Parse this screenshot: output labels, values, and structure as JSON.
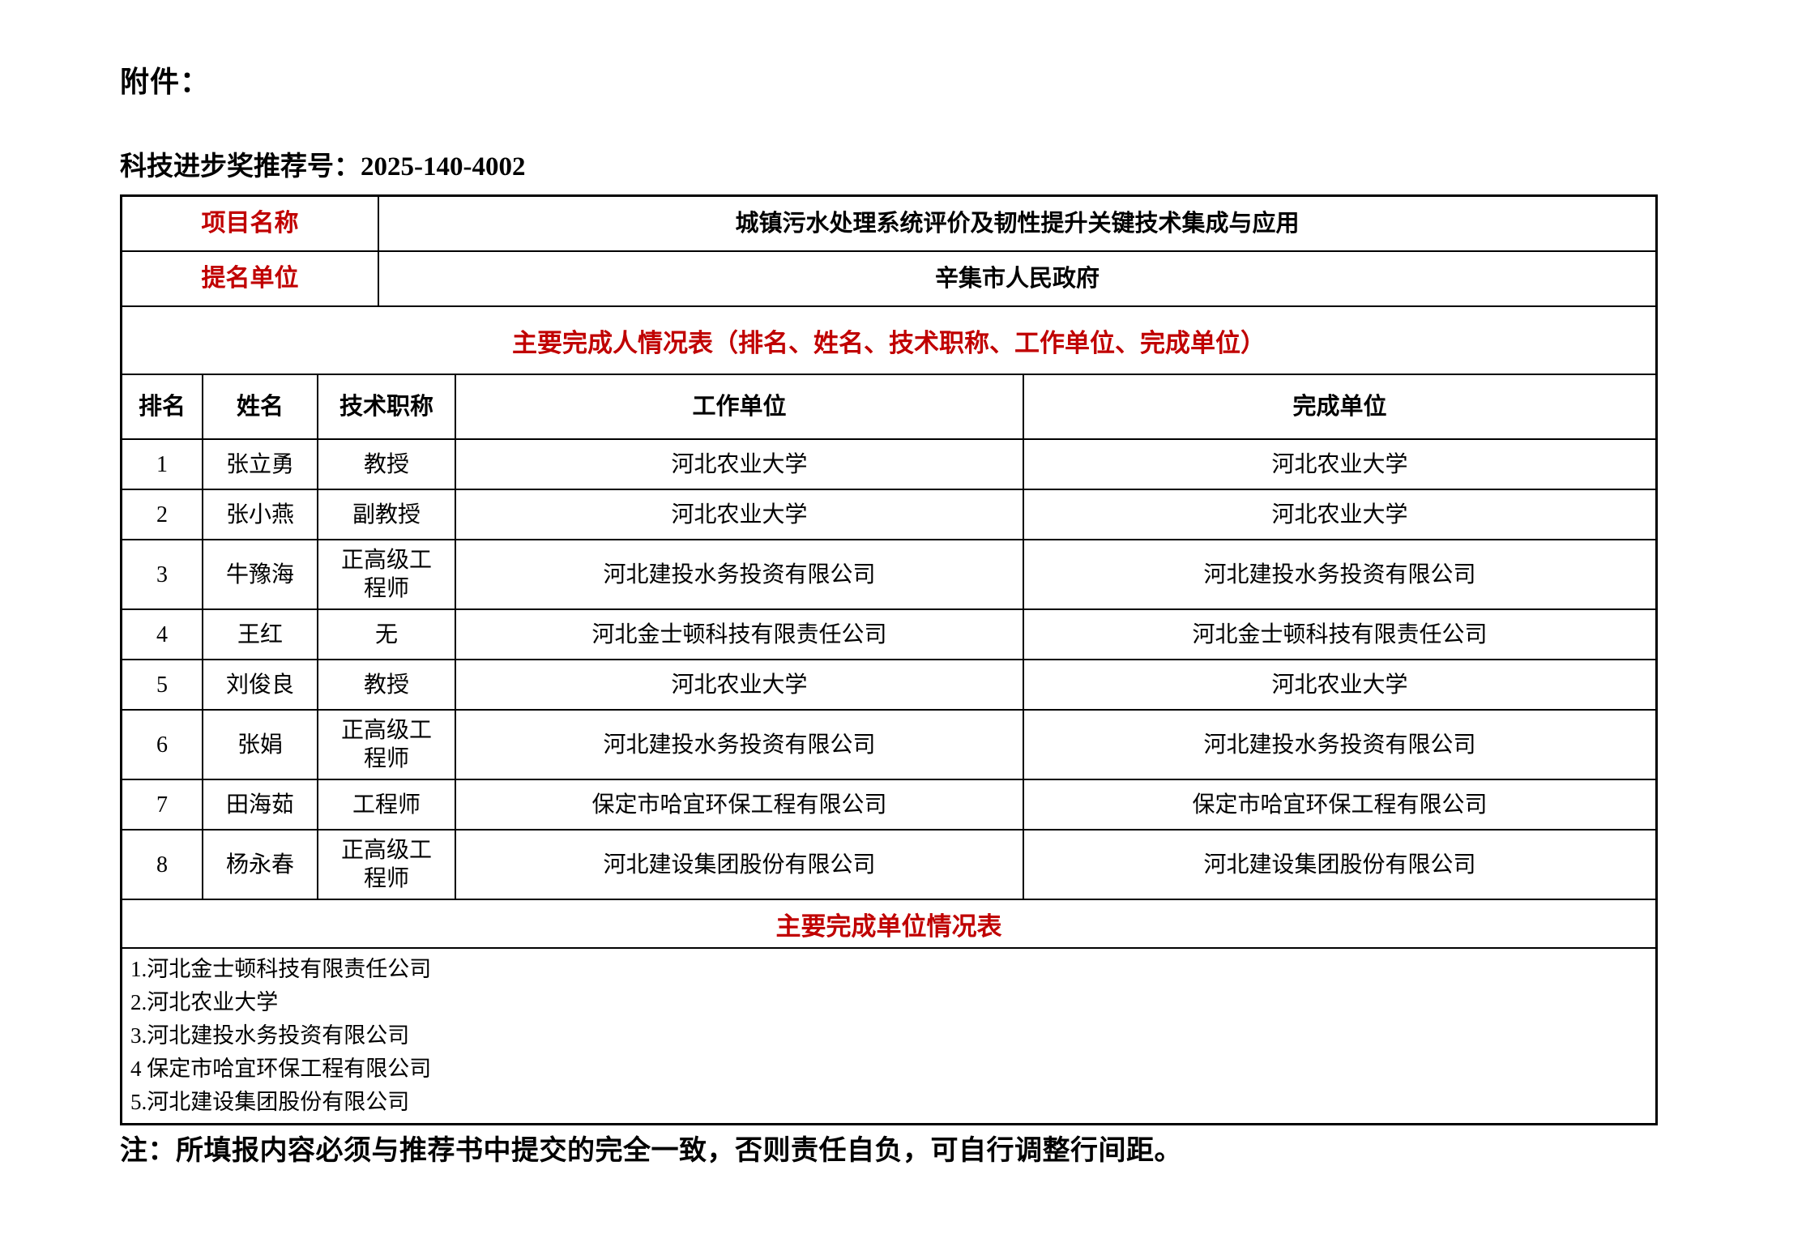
{
  "page": {
    "attachment_label": "附件：",
    "recommendation_label": "科技进步奖推荐号：",
    "recommendation_number": "2025-140-4002",
    "note": "注：所填报内容必须与推荐书中提交的完全一致，否则责任自负，可自行调整行间距。"
  },
  "info_table": {
    "rows": [
      {
        "label": "项目名称",
        "value": "城镇污水处理系统评价及韧性提升关键技术集成与应用"
      },
      {
        "label": "提名单位",
        "value": "辛集市人民政府"
      }
    ]
  },
  "contributors": {
    "section_title": "主要完成人情况表（排名、姓名、技术职称、工作单位、完成单位）",
    "headers": [
      "排名",
      "姓名",
      "技术职称",
      "工作单位",
      "完成单位"
    ],
    "rows": [
      {
        "rank": "1",
        "name": "张立勇",
        "title": "教授",
        "work_unit": "河北农业大学",
        "completion_unit": "河北农业大学"
      },
      {
        "rank": "2",
        "name": "张小燕",
        "title": "副教授",
        "work_unit": "河北农业大学",
        "completion_unit": "河北农业大学"
      },
      {
        "rank": "3",
        "name": "牛豫海",
        "title": "正高级工程师",
        "work_unit": "河北建投水务投资有限公司",
        "completion_unit": "河北建投水务投资有限公司"
      },
      {
        "rank": "4",
        "name": "王红",
        "title": "无",
        "work_unit": "河北金士顿科技有限责任公司",
        "completion_unit": "河北金士顿科技有限责任公司"
      },
      {
        "rank": "5",
        "name": "刘俊良",
        "title": "教授",
        "work_unit": "河北农业大学",
        "completion_unit": "河北农业大学"
      },
      {
        "rank": "6",
        "name": "张娟",
        "title": "正高级工程师",
        "work_unit": "河北建投水务投资有限公司",
        "completion_unit": "河北建投水务投资有限公司"
      },
      {
        "rank": "7",
        "name": "田海茹",
        "title": "工程师",
        "work_unit": "保定市哈宜环保工程有限公司",
        "completion_unit": "保定市哈宜环保工程有限公司"
      },
      {
        "rank": "8",
        "name": "杨永春",
        "title": "正高级工程师",
        "work_unit": "河北建设集团股份有限公司",
        "completion_unit": "河北建设集团股份有限公司"
      }
    ]
  },
  "units": {
    "section_title": "主要完成单位情况表",
    "items": [
      "1.河北金士顿科技有限责任公司",
      "2.河北农业大学",
      "3.河北建投水务投资有限公司",
      "4 保定市哈宜环保工程有限公司",
      "5.河北建设集团股份有限公司"
    ]
  },
  "colors": {
    "accent_red": "#c00000",
    "text": "#000000",
    "border": "#000000",
    "background": "#ffffff"
  }
}
